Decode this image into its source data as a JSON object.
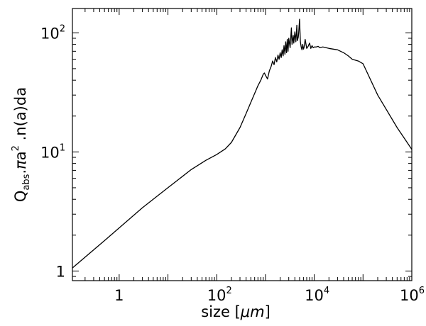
{
  "chart_data": {
    "type": "line",
    "x_scale": "log",
    "y_scale": "log",
    "xlim": [
      0.11,
      1000000
    ],
    "ylim": [
      0.83,
      160
    ],
    "xlabel_prefix": "size  [",
    "xlabel_unit": "μm",
    "xlabel_suffix": "]",
    "ylabel": {
      "q": "Q",
      "q_sub": "abs",
      "mid": ".",
      "pi": "π",
      "a": "a",
      "a_sup": "2",
      "rest": " .n(a)da"
    },
    "x_ticks": [
      {
        "value": 1,
        "base": "1",
        "exp": ""
      },
      {
        "value": 100,
        "base": "10",
        "exp": "2"
      },
      {
        "value": 10000,
        "base": "10",
        "exp": "4"
      },
      {
        "value": 1000000,
        "base": "10",
        "exp": "6"
      }
    ],
    "y_ticks": [
      {
        "value": 1,
        "base": "1",
        "exp": ""
      },
      {
        "value": 10,
        "base": "10",
        "exp": "1"
      },
      {
        "value": 100,
        "base": "10",
        "exp": "2"
      }
    ],
    "series": [
      {
        "color": "#000000",
        "x": [
          0.11,
          0.5,
          1,
          3,
          10,
          30,
          60,
          100,
          150,
          200,
          300,
          400,
          500,
          600,
          700,
          800,
          900,
          950,
          1000,
          1100,
          1200,
          1300,
          1400,
          1500,
          1600,
          1700,
          1800,
          1900,
          2000,
          2100,
          2200,
          2300,
          2400,
          2500,
          2600,
          2700,
          2800,
          2900,
          3000,
          3200,
          3400,
          3500,
          3700,
          3800,
          4000,
          4200,
          4400,
          4500,
          4700,
          4800,
          5000,
          5200,
          5400,
          5600,
          5800,
          6000,
          6200,
          6500,
          7000,
          7500,
          8000,
          8500,
          9000,
          9500,
          10000,
          11000,
          12000,
          13000,
          15000,
          20000,
          30000,
          40000,
          50000,
          60000,
          80000,
          100000,
          200000,
          500000,
          1000000
        ],
        "y": [
          1.06,
          1.8,
          2.3,
          3.4,
          5.0,
          7.1,
          8.5,
          9.5,
          10.6,
          12.0,
          16.0,
          21.0,
          26.0,
          31.0,
          36.0,
          40.0,
          45.0,
          46.0,
          44.0,
          41.0,
          48.0,
          52.0,
          58.0,
          54.0,
          62.0,
          57.0,
          65.0,
          60.0,
          68.0,
          62.0,
          72.0,
          64.0,
          78.0,
          66.0,
          84.0,
          68.0,
          88.0,
          70.0,
          90.0,
          75.0,
          110.0,
          80.0,
          95.0,
          82.0,
          102.0,
          84.0,
          116.0,
          86.0,
          92.0,
          100.0,
          130.0,
          84.0,
          76.0,
          72.0,
          80.0,
          73.0,
          76.0,
          88.0,
          74.0,
          77.0,
          82.0,
          74.0,
          78.0,
          75.0,
          76.0,
          76.0,
          77.0,
          75.0,
          76.0,
          74.0,
          72.0,
          68.0,
          64.0,
          60.0,
          58.0,
          55.0,
          30.0,
          16.0,
          10.5
        ]
      }
    ]
  }
}
